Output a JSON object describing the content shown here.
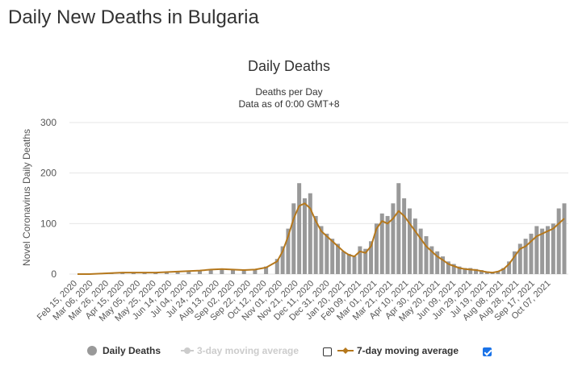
{
  "page": {
    "title": "Daily New Deaths in Bulgaria"
  },
  "colors": {
    "bars": "#999999",
    "avg7": "#b5781d",
    "avg3_disabled": "#cccccc",
    "grid": "#e6e6e6",
    "checkbox": "#1a73e8"
  },
  "legend": {
    "daily": {
      "label": "Daily Deaths",
      "icon": "circle-icon"
    },
    "avg3": {
      "label": "3-day moving average",
      "icon": "line-marker-icon",
      "checked": false
    },
    "avg7": {
      "label": "7-day moving average",
      "icon": "line-marker-icon",
      "checked": true
    }
  },
  "chart_data": {
    "type": "bar",
    "title": "Daily Deaths",
    "subtitle": [
      "Deaths per Day",
      "Data as of 0:00 GMT+8"
    ],
    "xlabel": "",
    "ylabel": "Novel Coronavirus Daily Deaths",
    "ylim": [
      0,
      300
    ],
    "yticks": [
      0,
      100,
      200,
      300
    ],
    "grid": true,
    "legend_position": "bottom",
    "xticks": [
      "Feb 15, 2020",
      "Mar 06, 2020",
      "Mar 26, 2020",
      "Apr 15, 2020",
      "May 05, 2020",
      "May 25, 2020",
      "Jun 14, 2020",
      "Jul 04, 2020",
      "Jul 24, 2020",
      "Aug 13, 2020",
      "Sep 02, 2020",
      "Sep 22, 2020",
      "Oct 12, 2020",
      "Nov 01, 2020",
      "Nov 21, 2020",
      "Dec 11, 2020",
      "Dec 31, 2020",
      "Jan 20, 2021",
      "Feb 09, 2021",
      "Mar 01, 2021",
      "Mar 21, 2021",
      "Apr 10, 2021",
      "Apr 30, 2021",
      "May 20, 2021",
      "Jun 09, 2021",
      "Jun 29, 2021",
      "Jul 19, 2021",
      "Aug 08, 2021",
      "Aug 28, 2021",
      "Sep 17, 2021",
      "Oct 07, 2021"
    ],
    "x_start": "Feb 15, 2020",
    "x_end": "Oct 25, 2021",
    "series": [
      {
        "name": "Daily Deaths",
        "type": "bar",
        "note_resolution": "weekly approximation",
        "x": [
          "Feb 15, 2020",
          "Mar 01, 2020",
          "Mar 15, 2020",
          "Mar 29, 2020",
          "Apr 12, 2020",
          "Apr 26, 2020",
          "May 10, 2020",
          "May 24, 2020",
          "Jun 07, 2020",
          "Jun 21, 2020",
          "Jul 05, 2020",
          "Jul 19, 2020",
          "Aug 02, 2020",
          "Aug 16, 2020",
          "Aug 30, 2020",
          "Sep 13, 2020",
          "Sep 27, 2020",
          "Oct 11, 2020",
          "Oct 25, 2020",
          "Nov 01, 2020",
          "Nov 08, 2020",
          "Nov 15, 2020",
          "Nov 22, 2020",
          "Nov 29, 2020",
          "Dec 06, 2020",
          "Dec 13, 2020",
          "Dec 20, 2020",
          "Dec 27, 2020",
          "Jan 03, 2021",
          "Jan 10, 2021",
          "Jan 17, 2021",
          "Jan 24, 2021",
          "Jan 31, 2021",
          "Feb 07, 2021",
          "Feb 14, 2021",
          "Feb 21, 2021",
          "Feb 28, 2021",
          "Mar 07, 2021",
          "Mar 14, 2021",
          "Mar 21, 2021",
          "Mar 28, 2021",
          "Apr 04, 2021",
          "Apr 11, 2021",
          "Apr 18, 2021",
          "Apr 25, 2021",
          "May 02, 2021",
          "May 09, 2021",
          "May 16, 2021",
          "May 23, 2021",
          "May 30, 2021",
          "Jun 06, 2021",
          "Jun 13, 2021",
          "Jun 20, 2021",
          "Jun 27, 2021",
          "Jul 04, 2021",
          "Jul 11, 2021",
          "Jul 18, 2021",
          "Jul 25, 2021",
          "Aug 01, 2021",
          "Aug 08, 2021",
          "Aug 15, 2021",
          "Aug 22, 2021",
          "Aug 29, 2021",
          "Sep 05, 2021",
          "Sep 12, 2021",
          "Sep 19, 2021",
          "Sep 26, 2021",
          "Oct 03, 2021",
          "Oct 10, 2021",
          "Oct 17, 2021",
          "Oct 24, 2021"
        ],
        "values": [
          0,
          0,
          1,
          2,
          3,
          2,
          3,
          3,
          4,
          5,
          6,
          8,
          10,
          11,
          9,
          8,
          10,
          15,
          30,
          55,
          90,
          140,
          180,
          150,
          160,
          115,
          95,
          80,
          70,
          60,
          45,
          40,
          35,
          55,
          50,
          65,
          100,
          120,
          115,
          140,
          180,
          150,
          130,
          110,
          90,
          75,
          55,
          45,
          35,
          25,
          20,
          15,
          12,
          12,
          10,
          8,
          5,
          4,
          6,
          12,
          25,
          45,
          60,
          70,
          80,
          95,
          90,
          95,
          100,
          130,
          140
        ]
      },
      {
        "name": "7-day moving average",
        "type": "line",
        "x": [
          "Feb 15, 2020",
          "Mar 01, 2020",
          "Mar 15, 2020",
          "Mar 29, 2020",
          "Apr 12, 2020",
          "Apr 26, 2020",
          "May 10, 2020",
          "May 24, 2020",
          "Jun 07, 2020",
          "Jun 21, 2020",
          "Jul 05, 2020",
          "Jul 19, 2020",
          "Aug 02, 2020",
          "Aug 16, 2020",
          "Aug 30, 2020",
          "Sep 13, 2020",
          "Sep 27, 2020",
          "Oct 11, 2020",
          "Oct 25, 2020",
          "Nov 01, 2020",
          "Nov 08, 2020",
          "Nov 15, 2020",
          "Nov 22, 2020",
          "Nov 29, 2020",
          "Dec 06, 2020",
          "Dec 13, 2020",
          "Dec 20, 2020",
          "Dec 27, 2020",
          "Jan 03, 2021",
          "Jan 10, 2021",
          "Jan 17, 2021",
          "Jan 24, 2021",
          "Jan 31, 2021",
          "Feb 07, 2021",
          "Feb 14, 2021",
          "Feb 21, 2021",
          "Feb 28, 2021",
          "Mar 07, 2021",
          "Mar 14, 2021",
          "Mar 21, 2021",
          "Mar 28, 2021",
          "Apr 04, 2021",
          "Apr 11, 2021",
          "Apr 18, 2021",
          "Apr 25, 2021",
          "May 02, 2021",
          "May 09, 2021",
          "May 16, 2021",
          "May 23, 2021",
          "May 30, 2021",
          "Jun 06, 2021",
          "Jun 13, 2021",
          "Jun 20, 2021",
          "Jun 27, 2021",
          "Jul 04, 2021",
          "Jul 11, 2021",
          "Jul 18, 2021",
          "Jul 25, 2021",
          "Aug 01, 2021",
          "Aug 08, 2021",
          "Aug 15, 2021",
          "Aug 22, 2021",
          "Aug 29, 2021",
          "Sep 05, 2021",
          "Sep 12, 2021",
          "Sep 19, 2021",
          "Sep 26, 2021",
          "Oct 03, 2021",
          "Oct 10, 2021",
          "Oct 17, 2021",
          "Oct 24, 2021"
        ],
        "values": [
          0,
          0,
          1,
          2,
          3,
          3,
          3,
          3,
          4,
          5,
          6,
          7,
          9,
          10,
          9,
          8,
          9,
          13,
          25,
          45,
          75,
          110,
          135,
          140,
          130,
          105,
          85,
          75,
          65,
          55,
          45,
          38,
          35,
          45,
          42,
          55,
          90,
          105,
          100,
          110,
          125,
          115,
          100,
          85,
          70,
          55,
          45,
          35,
          28,
          20,
          16,
          12,
          10,
          9,
          8,
          6,
          4,
          3,
          5,
          10,
          20,
          35,
          50,
          55,
          65,
          75,
          80,
          85,
          90,
          100,
          110
        ]
      }
    ]
  }
}
